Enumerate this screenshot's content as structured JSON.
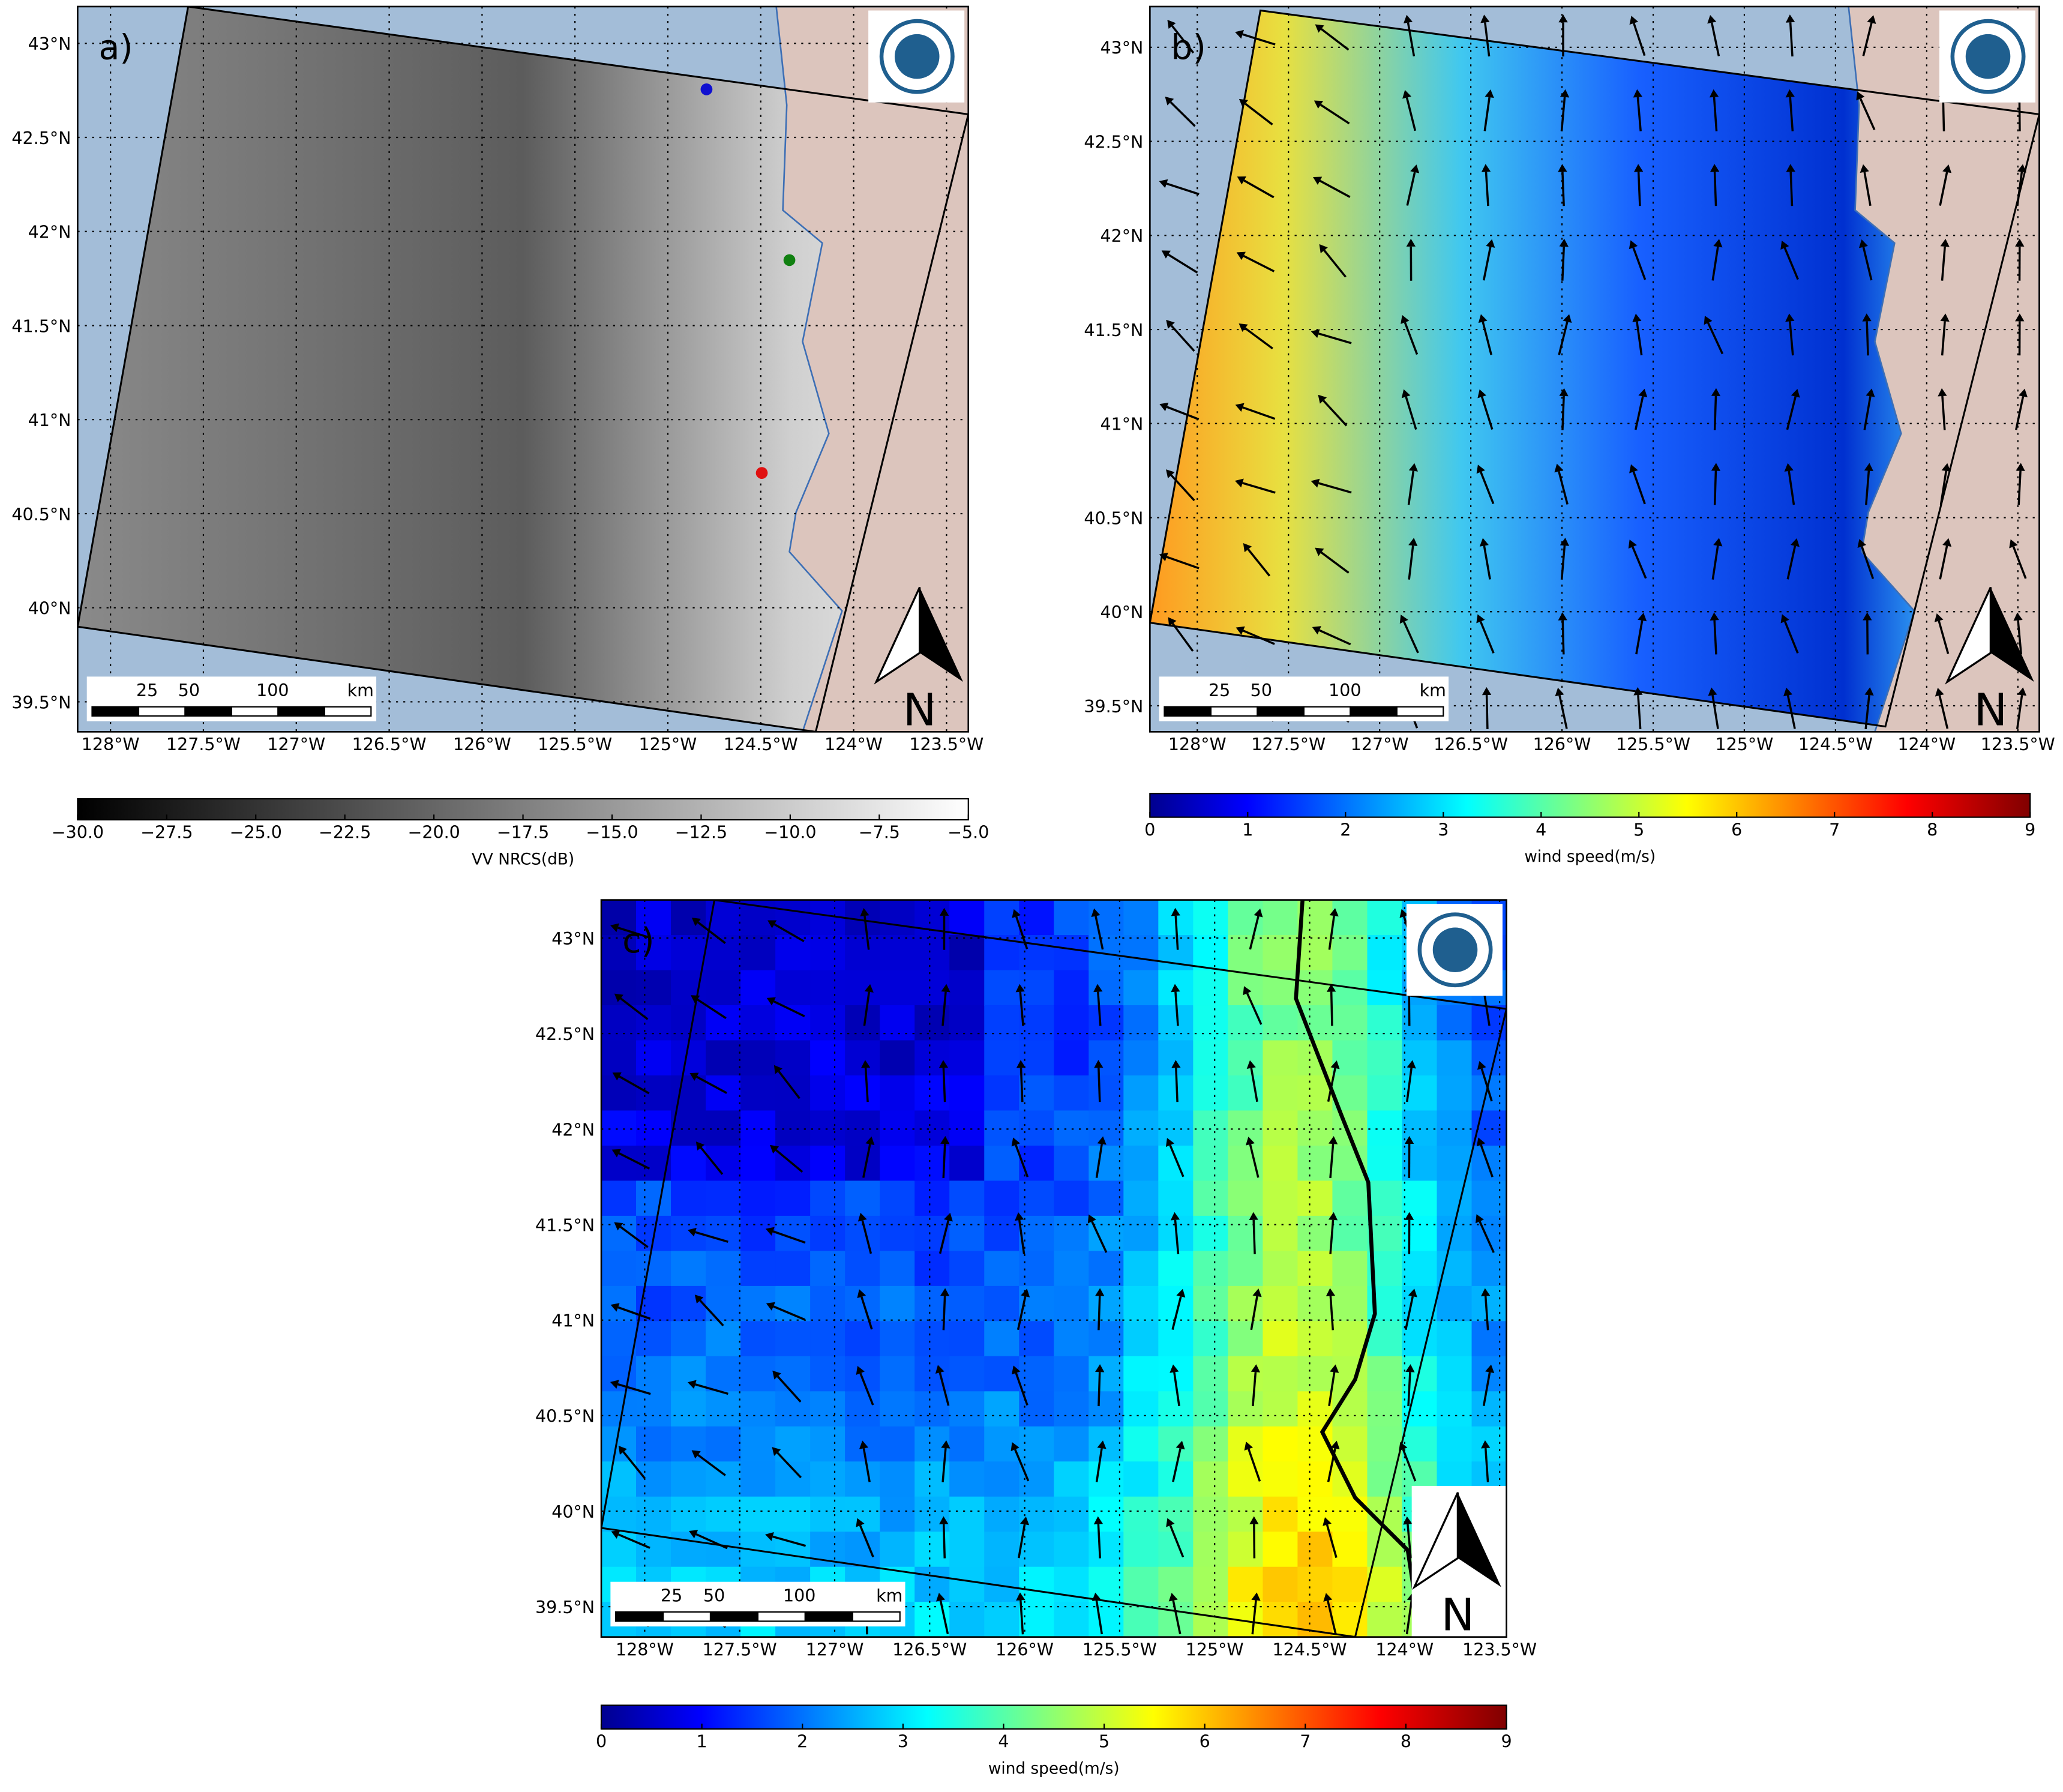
{
  "panels": [
    {
      "label": "a)",
      "lon_ticks": [
        "128°W",
        "127.5°W",
        "127°W",
        "126.5°W",
        "126°W",
        "125.5°W",
        "125°W",
        "124.5°W",
        "124°W",
        "123.5°W"
      ],
      "lat_ticks": [
        "43°N",
        "42.5°N",
        "42°N",
        "41.5°N",
        "41°N",
        "40.5°N",
        "40°N",
        "39.5°N"
      ],
      "scale_bar": {
        "labels": [
          "25",
          "50",
          "100"
        ],
        "unit": "km"
      },
      "north": "N",
      "colorbar": {
        "label": "VV NRCS(dB)",
        "lim": [
          -30,
          -5
        ],
        "ticks": [
          {
            "value": -30,
            "label": "−30.0"
          },
          {
            "value": -27.5,
            "label": "−27.5"
          },
          {
            "value": -25,
            "label": "−25.0"
          },
          {
            "value": -22.5,
            "label": "−22.5"
          },
          {
            "value": -20,
            "label": "−20.0"
          },
          {
            "value": -17.5,
            "label": "−17.5"
          },
          {
            "value": -15,
            "label": "−15.0"
          },
          {
            "value": -12.5,
            "label": "−12.5"
          },
          {
            "value": -10,
            "label": "−10.0"
          },
          {
            "value": -7.5,
            "label": "−7.5"
          },
          {
            "value": -5,
            "label": "−5.0"
          }
        ]
      }
    },
    {
      "label": "b)",
      "lon_ticks": [
        "128°W",
        "127.5°W",
        "127°W",
        "126.5°W",
        "126°W",
        "125.5°W",
        "125°W",
        "124.5°W",
        "124°W",
        "123.5°W"
      ],
      "lat_ticks": [
        "43°N",
        "42.5°N",
        "42°N",
        "41.5°N",
        "41°N",
        "40.5°N",
        "40°N",
        "39.5°N"
      ],
      "scale_bar": {
        "labels": [
          "25",
          "50",
          "100"
        ],
        "unit": "km"
      },
      "north": "N",
      "colorbar": {
        "label": "wind speed(m/s)",
        "lim": [
          0,
          9
        ],
        "ticks": [
          0,
          1,
          2,
          3,
          4,
          5,
          6,
          7,
          8,
          9
        ]
      }
    },
    {
      "label": "c)",
      "lon_ticks": [
        "128°W",
        "127.5°W",
        "127°W",
        "126.5°W",
        "126°W",
        "125.5°W",
        "125°W",
        "124.5°W",
        "124°W",
        "123.5°W"
      ],
      "lat_ticks": [
        "43°N",
        "42.5°N",
        "42°N",
        "41.5°N",
        "41°N",
        "40.5°N",
        "40°N",
        "39.5°N"
      ],
      "scale_bar": {
        "labels": [
          "25",
          "50",
          "100"
        ],
        "unit": "km"
      },
      "north": "N",
      "colorbar": {
        "label": "wind speed(m/s)",
        "lim": [
          0,
          9
        ],
        "ticks": [
          0,
          1,
          2,
          3,
          4,
          5,
          6,
          7,
          8,
          9
        ]
      }
    }
  ]
}
